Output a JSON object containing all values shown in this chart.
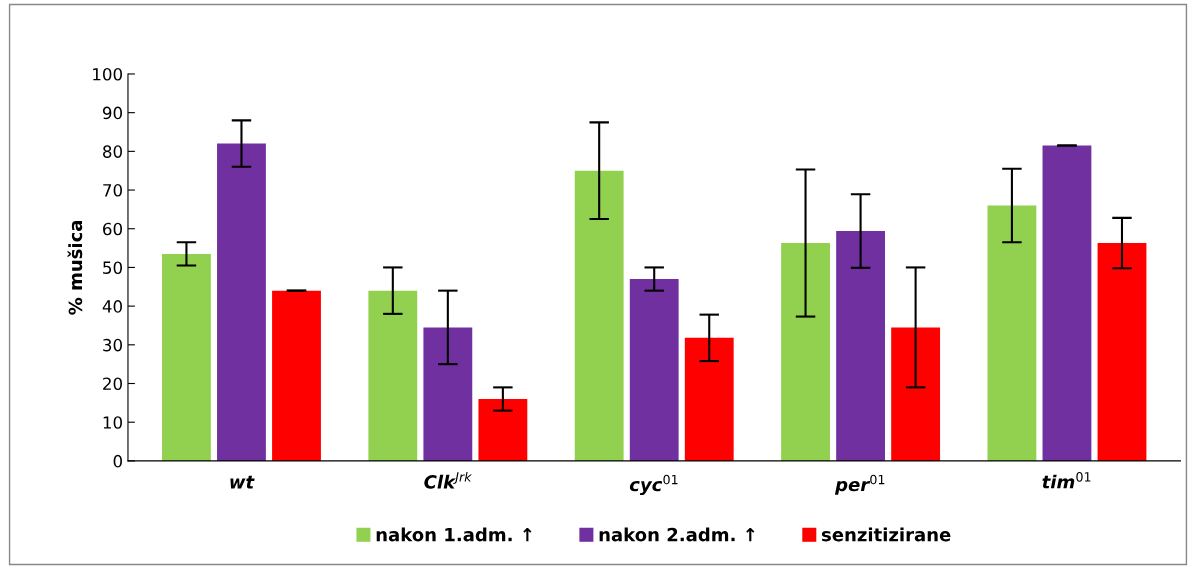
{
  "chart_data": {
    "type": "bar",
    "ylabel": "% mušica",
    "categories": [
      "wt",
      "Clk$^{Jrk}$",
      "cyc$^{01}$",
      "per$^{01}$",
      "tim$^{01}$"
    ],
    "series": [
      {
        "name": "nakon 1.adm. ↑",
        "color": "#92d050",
        "values": [
          53.5,
          44,
          75,
          56.3,
          66
        ],
        "errors": [
          3,
          6,
          12.5,
          19,
          9.5
        ]
      },
      {
        "name": "nakon 2.adm. ↑",
        "color": "#7030a0",
        "values": [
          82,
          34.5,
          47,
          59.4,
          81.5
        ],
        "errors": [
          6,
          9.5,
          3,
          9.5,
          0
        ]
      },
      {
        "name": "senzitizirane",
        "color": "#ff0000",
        "values": [
          44,
          16,
          31.8,
          34.5,
          56.3
        ],
        "errors": [
          0,
          3,
          6,
          15.5,
          6.5
        ]
      }
    ],
    "ylim": [
      0,
      100
    ],
    "yticks": [
      0,
      10,
      20,
      30,
      40,
      50,
      60,
      70,
      80,
      90,
      100
    ],
    "grid": false,
    "legend": "bottom"
  }
}
